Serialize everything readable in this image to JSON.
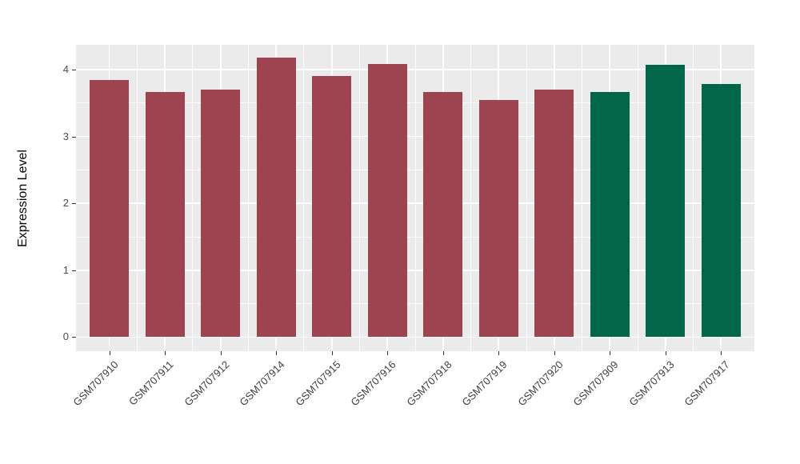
{
  "chart_data": {
    "type": "bar",
    "title": "",
    "xlabel": "",
    "ylabel": "Expression Level",
    "categories": [
      "GSM707910",
      "GSM707911",
      "GSM707912",
      "GSM707914",
      "GSM707915",
      "GSM707916",
      "GSM707918",
      "GSM707919",
      "GSM707920",
      "GSM707909",
      "GSM707913",
      "GSM707917"
    ],
    "values": [
      3.84,
      3.66,
      3.7,
      4.18,
      3.9,
      4.08,
      3.67,
      3.54,
      3.7,
      3.66,
      4.07,
      3.78
    ],
    "bar_groups": [
      "group1",
      "group1",
      "group1",
      "group1",
      "group1",
      "group1",
      "group1",
      "group1",
      "group1",
      "group2",
      "group2",
      "group2"
    ],
    "group_colors": {
      "group1": "#9E4350",
      "group2": "#026649"
    },
    "yticks": [
      0,
      1,
      2,
      3,
      4
    ],
    "yminor": [
      0.5,
      1.5,
      2.5,
      3.5
    ],
    "ylim": [
      -0.21,
      4.37
    ],
    "grid": "on",
    "legend": "none",
    "panel_background": "#EBEBEB",
    "grid_color": "#FFFFFF",
    "tick_color": "#333333",
    "bar_width_fraction": 0.7
  }
}
